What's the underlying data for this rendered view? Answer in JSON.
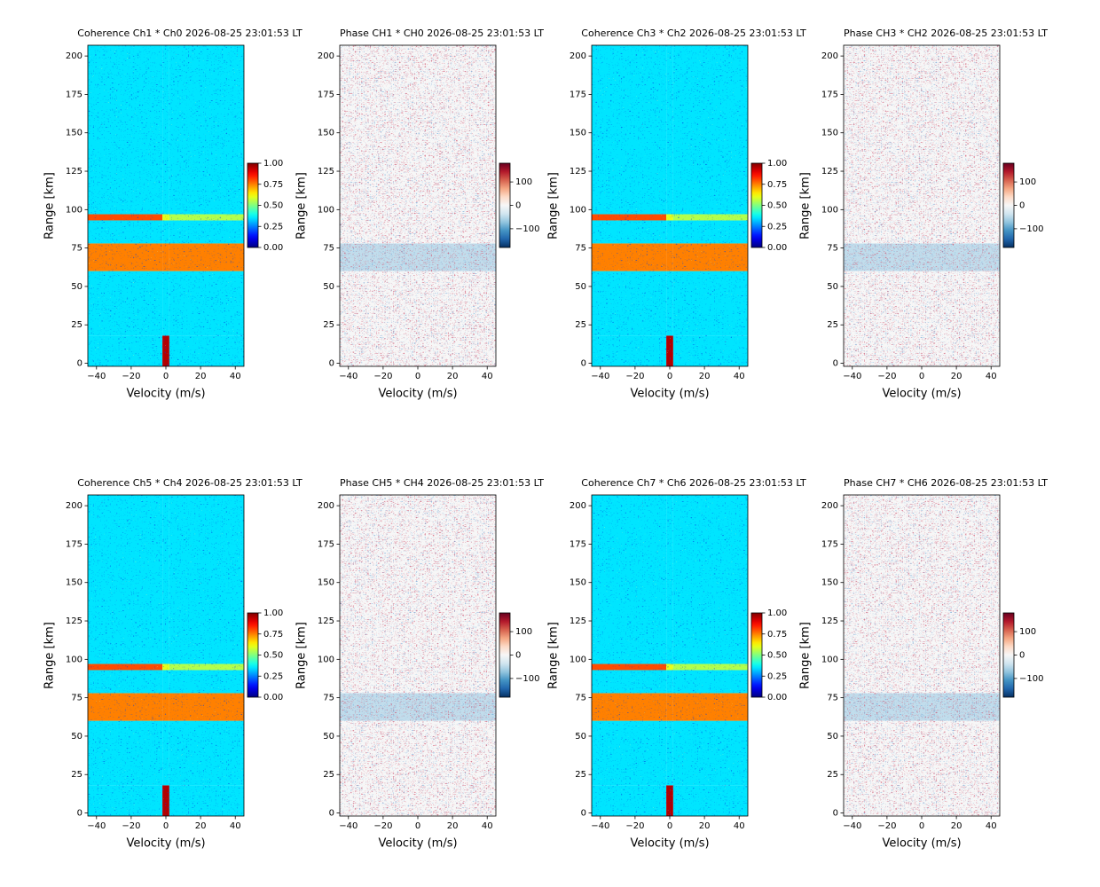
{
  "chart_data": [
    {
      "type": "heatmap",
      "title": "Coherence Ch1 * Ch0 2026-08-25 23:01:53 LT",
      "xlabel": "Velocity (m/s)",
      "ylabel": "Range [km]",
      "xlim": [
        -45,
        45
      ],
      "ylim": [
        -2,
        207
      ],
      "xticks": [
        {
          "value": -40,
          "label": "−40"
        },
        {
          "value": -20,
          "label": "−20"
        },
        0,
        20,
        40
      ],
      "yticks": [
        0,
        25,
        50,
        75,
        100,
        125,
        150,
        175,
        200
      ],
      "colormap": "jet",
      "clim": [
        0,
        1
      ],
      "cticks": [
        {
          "value": 0,
          "label": "0.00"
        },
        {
          "value": 0.25,
          "label": "0.25"
        },
        {
          "value": 0.5,
          "label": "0.50"
        },
        {
          "value": 0.75,
          "label": "0.75"
        },
        {
          "value": 1,
          "label": "1.00"
        }
      ],
      "x_edges": [
        -45,
        -2,
        2,
        45
      ],
      "y_edges": [
        -2,
        18,
        60,
        78,
        93,
        97,
        207
      ],
      "z": [
        [
          0.35,
          0.95,
          0.35
        ],
        [
          0.35,
          0.35,
          0.35
        ],
        [
          0.75,
          0.75,
          0.75
        ],
        [
          0.35,
          0.35,
          0.35
        ],
        [
          0.8,
          0.6,
          0.55
        ],
        [
          0.35,
          0.35,
          0.35
        ]
      ]
    },
    {
      "type": "heatmap",
      "title": "Phase CH1 * CH0 2026-08-25 23:01:53 LT",
      "xlabel": "Velocity (m/s)",
      "ylabel": "Range [km]",
      "xlim": [
        -45,
        45
      ],
      "ylim": [
        -2,
        207
      ],
      "xticks": [
        {
          "value": -40,
          "label": "−40"
        },
        {
          "value": -20,
          "label": "−20"
        },
        0,
        20,
        40
      ],
      "yticks": [
        0,
        25,
        50,
        75,
        100,
        125,
        150,
        175,
        200
      ],
      "colormap": "RdBu_r",
      "clim": [
        -180,
        180
      ],
      "cticks": [
        {
          "value": -100,
          "label": "−100"
        },
        0,
        100
      ],
      "x_edges": [
        -45,
        45
      ],
      "y_edges": [
        -2,
        60,
        78,
        207
      ],
      "z": [
        [
          0
        ],
        [
          -45
        ],
        [
          0
        ]
      ]
    },
    {
      "type": "heatmap",
      "title": "Coherence Ch3 * Ch2 2026-08-25 23:01:53 LT",
      "xlabel": "Velocity (m/s)",
      "ylabel": "Range [km]",
      "xlim": [
        -45,
        45
      ],
      "ylim": [
        -2,
        207
      ],
      "xticks": [
        {
          "value": -40,
          "label": "−40"
        },
        {
          "value": -20,
          "label": "−20"
        },
        0,
        20,
        40
      ],
      "yticks": [
        0,
        25,
        50,
        75,
        100,
        125,
        150,
        175,
        200
      ],
      "colormap": "jet",
      "clim": [
        0,
        1
      ],
      "cticks": [
        {
          "value": 0,
          "label": "0.00"
        },
        {
          "value": 0.25,
          "label": "0.25"
        },
        {
          "value": 0.5,
          "label": "0.50"
        },
        {
          "value": 0.75,
          "label": "0.75"
        },
        {
          "value": 1,
          "label": "1.00"
        }
      ],
      "x_edges": [
        -45,
        -2,
        2,
        45
      ],
      "y_edges": [
        -2,
        18,
        60,
        78,
        93,
        97,
        207
      ],
      "z": [
        [
          0.35,
          0.95,
          0.35
        ],
        [
          0.35,
          0.35,
          0.35
        ],
        [
          0.75,
          0.75,
          0.75
        ],
        [
          0.35,
          0.35,
          0.35
        ],
        [
          0.8,
          0.6,
          0.55
        ],
        [
          0.35,
          0.35,
          0.35
        ]
      ]
    },
    {
      "type": "heatmap",
      "title": "Phase CH3 * CH2 2026-08-25 23:01:53 LT",
      "xlabel": "Velocity (m/s)",
      "ylabel": "Range [km]",
      "xlim": [
        -45,
        45
      ],
      "ylim": [
        -2,
        207
      ],
      "xticks": [
        {
          "value": -40,
          "label": "−40"
        },
        {
          "value": -20,
          "label": "−20"
        },
        0,
        20,
        40
      ],
      "yticks": [
        0,
        25,
        50,
        75,
        100,
        125,
        150,
        175,
        200
      ],
      "colormap": "RdBu_r",
      "clim": [
        -180,
        180
      ],
      "cticks": [
        {
          "value": -100,
          "label": "−100"
        },
        0,
        100
      ],
      "x_edges": [
        -45,
        45
      ],
      "y_edges": [
        -2,
        60,
        78,
        207
      ],
      "z": [
        [
          0
        ],
        [
          -45
        ],
        [
          0
        ]
      ]
    },
    {
      "type": "heatmap",
      "title": "Coherence Ch5 * Ch4 2026-08-25 23:01:53 LT",
      "xlabel": "Velocity (m/s)",
      "ylabel": "Range [km]",
      "xlim": [
        -45,
        45
      ],
      "ylim": [
        -2,
        207
      ],
      "xticks": [
        {
          "value": -40,
          "label": "−40"
        },
        {
          "value": -20,
          "label": "−20"
        },
        0,
        20,
        40
      ],
      "yticks": [
        0,
        25,
        50,
        75,
        100,
        125,
        150,
        175,
        200
      ],
      "colormap": "jet",
      "clim": [
        0,
        1
      ],
      "cticks": [
        {
          "value": 0,
          "label": "0.00"
        },
        {
          "value": 0.25,
          "label": "0.25"
        },
        {
          "value": 0.5,
          "label": "0.50"
        },
        {
          "value": 0.75,
          "label": "0.75"
        },
        {
          "value": 1,
          "label": "1.00"
        }
      ],
      "x_edges": [
        -45,
        -2,
        2,
        45
      ],
      "y_edges": [
        -2,
        18,
        60,
        78,
        93,
        97,
        207
      ],
      "z": [
        [
          0.35,
          0.95,
          0.35
        ],
        [
          0.35,
          0.35,
          0.35
        ],
        [
          0.75,
          0.75,
          0.75
        ],
        [
          0.35,
          0.35,
          0.35
        ],
        [
          0.8,
          0.6,
          0.55
        ],
        [
          0.35,
          0.35,
          0.35
        ]
      ]
    },
    {
      "type": "heatmap",
      "title": "Phase CH5 * CH4 2026-08-25 23:01:53 LT",
      "xlabel": "Velocity (m/s)",
      "ylabel": "Range [km]",
      "xlim": [
        -45,
        45
      ],
      "ylim": [
        -2,
        207
      ],
      "xticks": [
        {
          "value": -40,
          "label": "−40"
        },
        {
          "value": -20,
          "label": "−20"
        },
        0,
        20,
        40
      ],
      "yticks": [
        0,
        25,
        50,
        75,
        100,
        125,
        150,
        175,
        200
      ],
      "colormap": "RdBu_r",
      "clim": [
        -180,
        180
      ],
      "cticks": [
        {
          "value": -100,
          "label": "−100"
        },
        0,
        100
      ],
      "x_edges": [
        -45,
        45
      ],
      "y_edges": [
        -2,
        60,
        78,
        207
      ],
      "z": [
        [
          0
        ],
        [
          -45
        ],
        [
          0
        ]
      ]
    },
    {
      "type": "heatmap",
      "title": "Coherence Ch7 * Ch6 2026-08-25 23:01:53 LT",
      "xlabel": "Velocity (m/s)",
      "ylabel": "Range [km]",
      "xlim": [
        -45,
        45
      ],
      "ylim": [
        -2,
        207
      ],
      "xticks": [
        {
          "value": -40,
          "label": "−40"
        },
        {
          "value": -20,
          "label": "−20"
        },
        0,
        20,
        40
      ],
      "yticks": [
        0,
        25,
        50,
        75,
        100,
        125,
        150,
        175,
        200
      ],
      "colormap": "jet",
      "clim": [
        0,
        1
      ],
      "cticks": [
        {
          "value": 0,
          "label": "0.00"
        },
        {
          "value": 0.25,
          "label": "0.25"
        },
        {
          "value": 0.5,
          "label": "0.50"
        },
        {
          "value": 0.75,
          "label": "0.75"
        },
        {
          "value": 1,
          "label": "1.00"
        }
      ],
      "x_edges": [
        -45,
        -2,
        2,
        45
      ],
      "y_edges": [
        -2,
        18,
        60,
        78,
        93,
        97,
        207
      ],
      "z": [
        [
          0.35,
          0.95,
          0.35
        ],
        [
          0.35,
          0.35,
          0.35
        ],
        [
          0.75,
          0.75,
          0.75
        ],
        [
          0.35,
          0.35,
          0.35
        ],
        [
          0.8,
          0.6,
          0.55
        ],
        [
          0.35,
          0.35,
          0.35
        ]
      ]
    },
    {
      "type": "heatmap",
      "title": "Phase CH7 * CH6 2026-08-25 23:01:53 LT",
      "xlabel": "Velocity (m/s)",
      "ylabel": "Range [km]",
      "xlim": [
        -45,
        45
      ],
      "ylim": [
        -2,
        207
      ],
      "xticks": [
        {
          "value": -40,
          "label": "−40"
        },
        {
          "value": -20,
          "label": "−20"
        },
        0,
        20,
        40
      ],
      "yticks": [
        0,
        25,
        50,
        75,
        100,
        125,
        150,
        175,
        200
      ],
      "colormap": "RdBu_r",
      "clim": [
        -180,
        180
      ],
      "cticks": [
        {
          "value": -100,
          "label": "−100"
        },
        0,
        100
      ],
      "x_edges": [
        -45,
        45
      ],
      "y_edges": [
        -2,
        60,
        78,
        207
      ],
      "z": [
        [
          0
        ],
        [
          -45
        ],
        [
          0
        ]
      ]
    }
  ]
}
